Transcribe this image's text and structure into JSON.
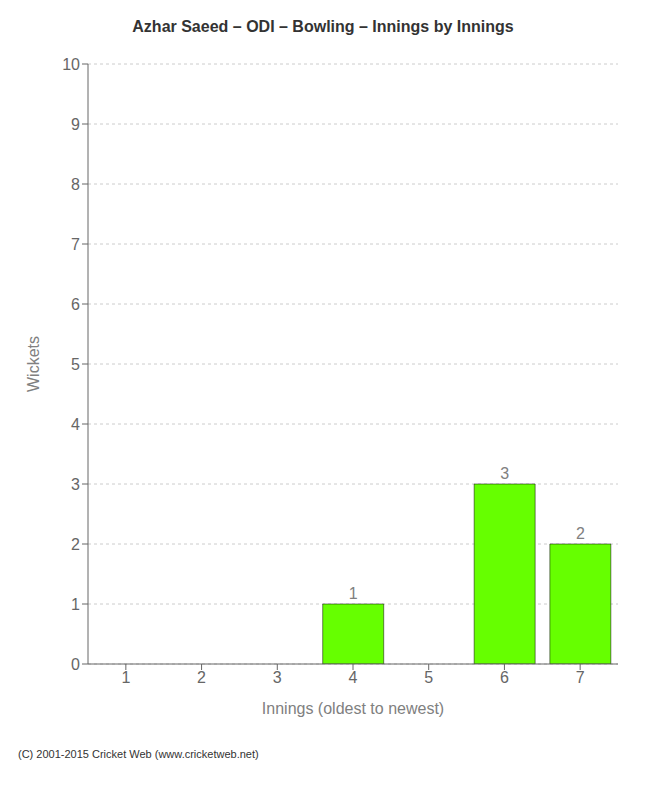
{
  "chart_data": {
    "type": "bar",
    "title": "Azhar Saeed – ODI – Bowling – Innings by Innings",
    "xlabel": "Innings (oldest to newest)",
    "ylabel": "Wickets",
    "categories": [
      "1",
      "2",
      "3",
      "4",
      "5",
      "6",
      "7"
    ],
    "values": [
      0,
      0,
      0,
      1,
      0,
      3,
      2
    ],
    "color": "#66ff00",
    "ylim": [
      0,
      10
    ],
    "yticks": [
      0,
      1,
      2,
      3,
      4,
      5,
      6,
      7,
      8,
      9,
      10
    ],
    "grid": true,
    "data_labels": true,
    "annotations": [
      "(C) 2001-2015 Cricket Web (www.cricketweb.net)"
    ]
  }
}
